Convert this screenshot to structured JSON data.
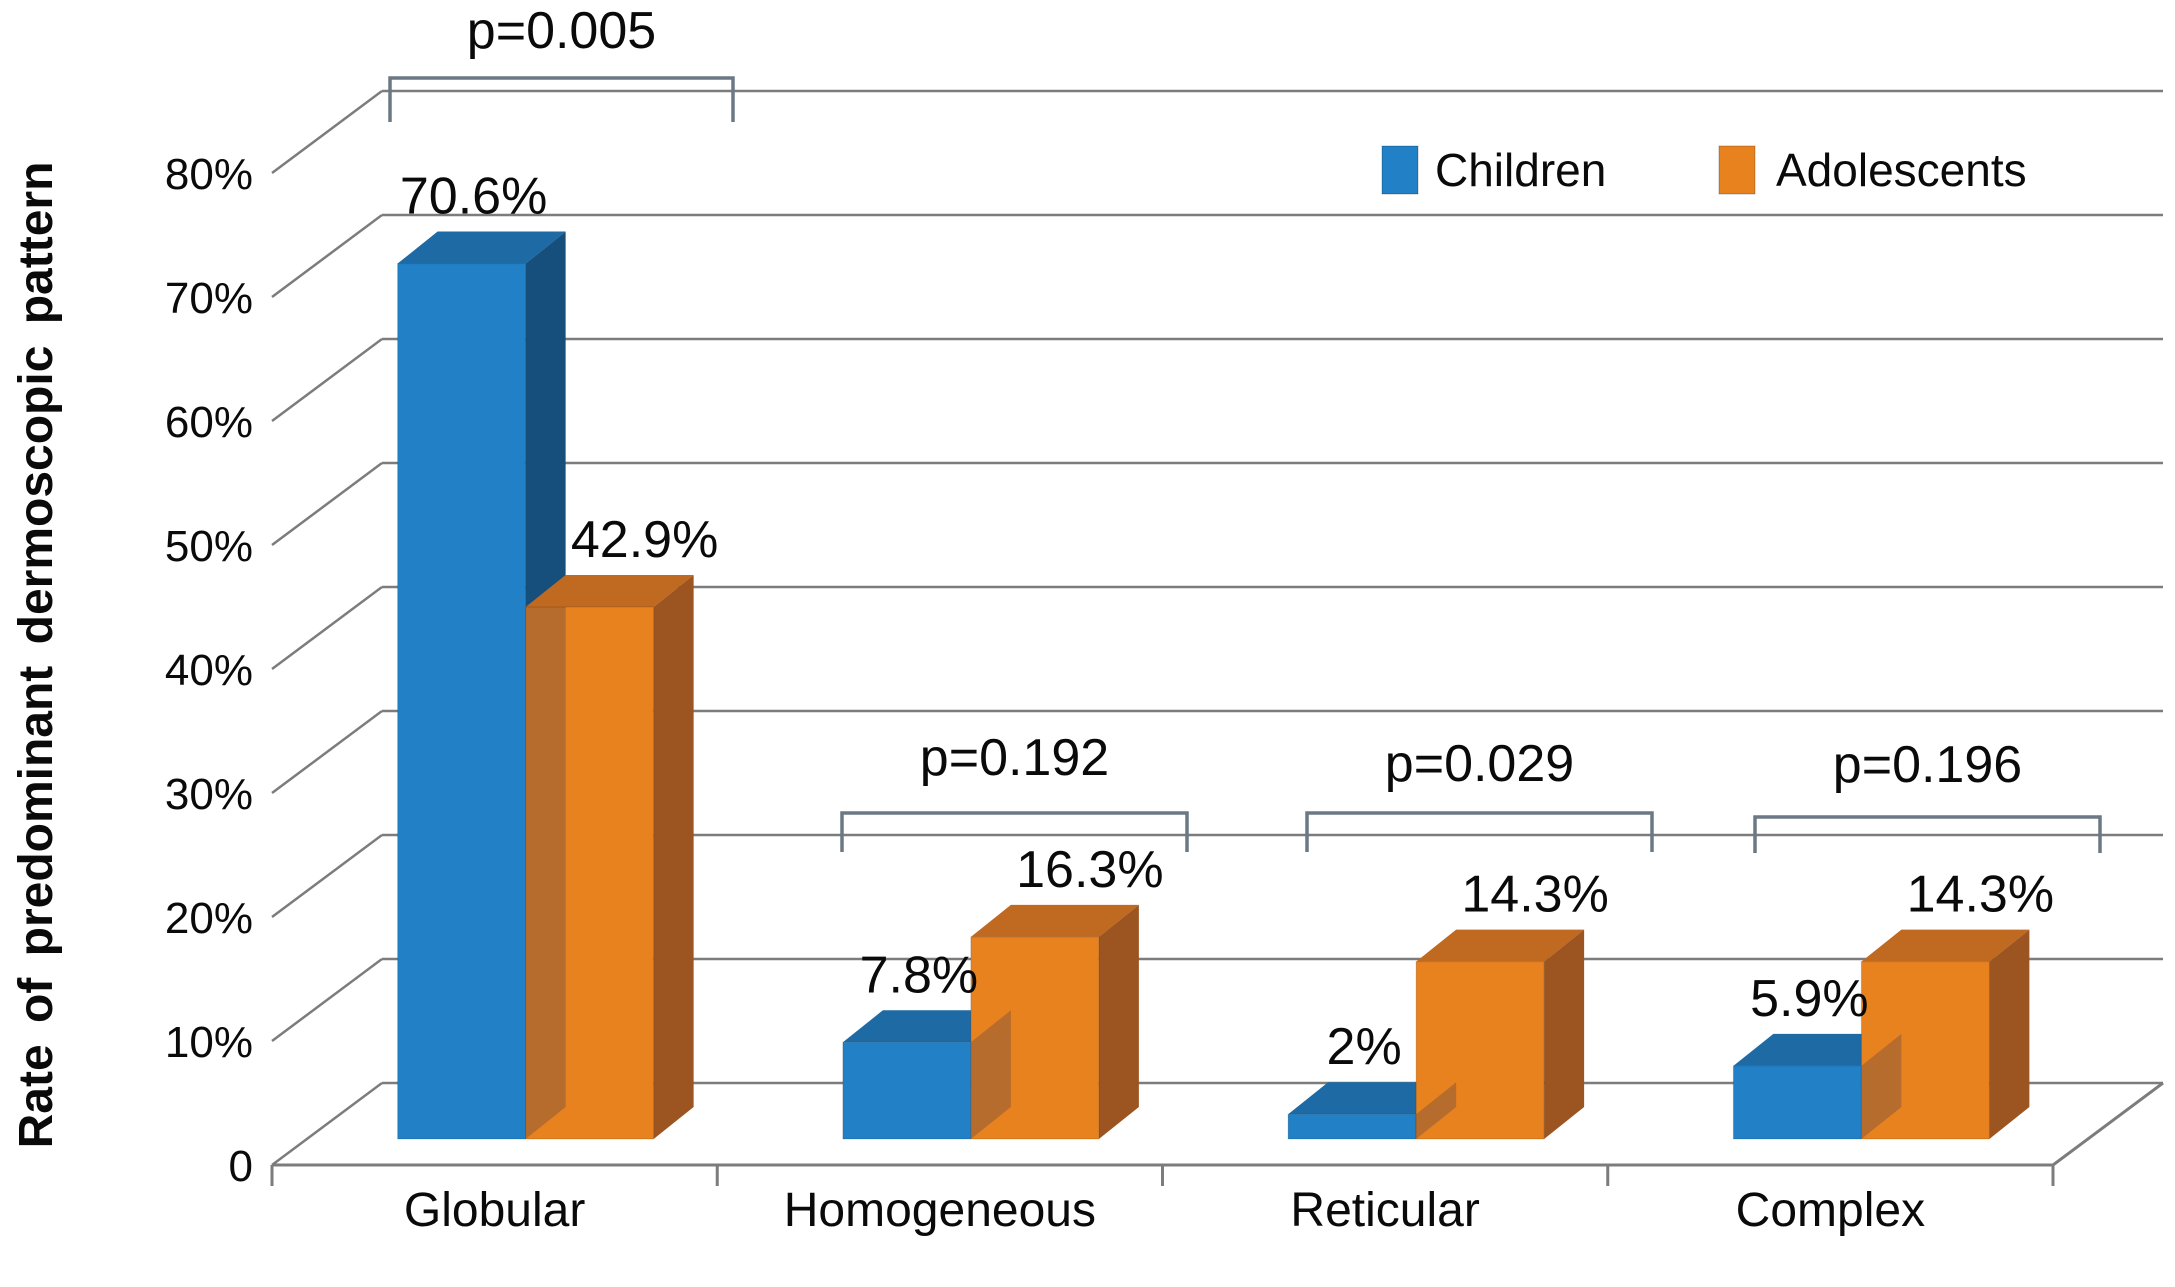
{
  "chart_data": {
    "type": "bar",
    "projection": "3d-clustered-column",
    "title": "",
    "ylabel": "Rate of predominant dermoscopic pattern",
    "xlabel": "",
    "ylim": [
      0,
      80
    ],
    "grid": true,
    "legend_position": "top-right",
    "y_ticks": [
      "0",
      "10%",
      "20%",
      "30%",
      "40%",
      "50%",
      "60%",
      "70%",
      "80%"
    ],
    "categories": [
      "Globular",
      "Homogeneous",
      "Reticular",
      "Complex"
    ],
    "series": [
      {
        "name": "Children",
        "color": "#2180C6",
        "color_top": "#1D6AA5",
        "color_side": "#174F7C",
        "values": [
          70.6,
          7.8,
          2,
          5.9
        ],
        "labels": [
          "70.6%",
          "7.8%",
          "2%",
          "5.9%"
        ]
      },
      {
        "name": "Adolescents",
        "color": "#E8821F",
        "color_top": "#C06920",
        "color_side": "#9C5420",
        "values": [
          42.9,
          16.3,
          14.3,
          14.3
        ],
        "labels": [
          "42.9%",
          "16.3%",
          "14.3%",
          "14.3%"
        ]
      }
    ],
    "p_values": [
      {
        "category": "Globular",
        "label": "p=0.005"
      },
      {
        "category": "Homogeneous",
        "label": "p=0.192"
      },
      {
        "category": "Reticular",
        "label": "p=0.029"
      },
      {
        "category": "Complex",
        "label": "p=0.196"
      }
    ],
    "colors": {
      "gridline": "#7C7C7C",
      "bracket": "#6C7884",
      "text": "#0A0A0A",
      "background": "#FFFFFF"
    }
  }
}
